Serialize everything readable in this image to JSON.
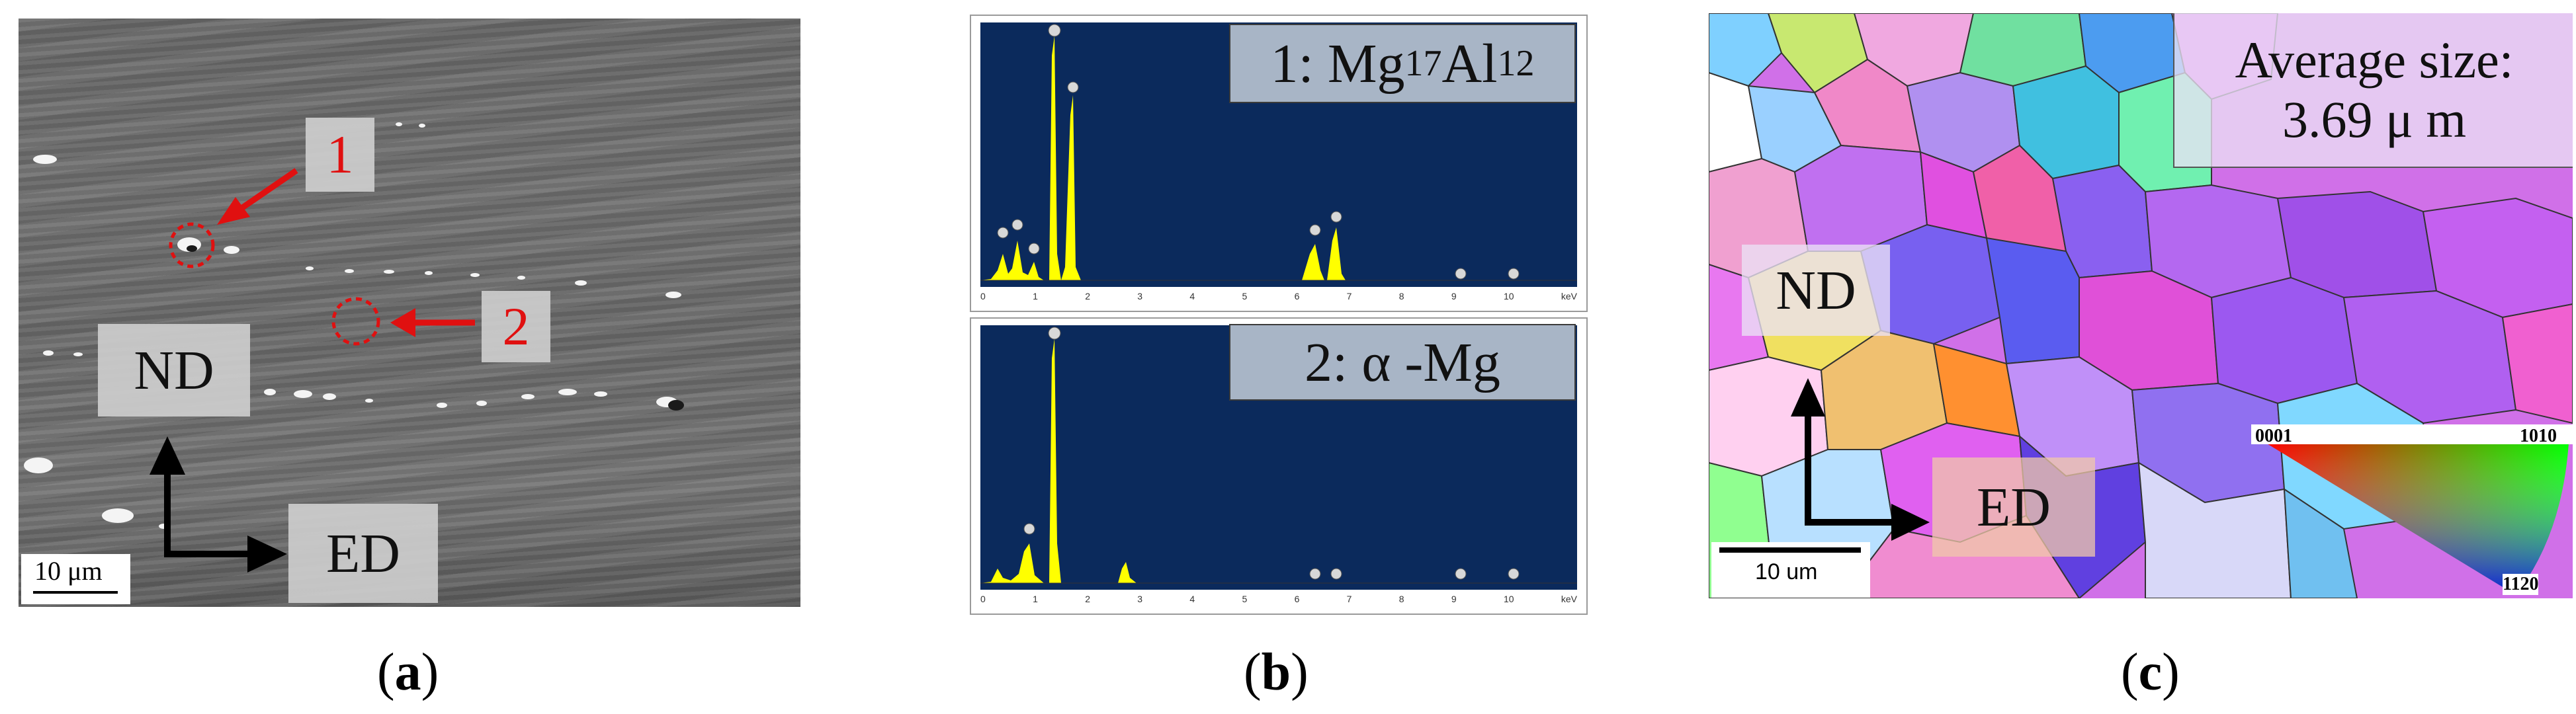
{
  "panel_a": {
    "marker_1": "1",
    "marker_2": "2",
    "nd_label": "ND",
    "ed_label": "ED",
    "scale_label": "10 μm",
    "caption": "a"
  },
  "panel_b": {
    "spectrum_1_label_prefix": "1: Mg",
    "spectrum_1_sub1": "17",
    "spectrum_1_mid": "Al",
    "spectrum_1_sub2": "12",
    "spectrum_2_label": "2:  α -Mg",
    "x_ticks": [
      "0",
      "1",
      "2",
      "3",
      "4",
      "5",
      "6",
      "7",
      "8",
      "9",
      "10"
    ],
    "x_unit": "keV",
    "caption": "b",
    "peak_color": "#ffff00",
    "background_color": "#0b2a5c"
  },
  "panel_c": {
    "avg_size_line1": "Average size:",
    "avg_size_line2": "3.69  μ m",
    "nd_label": "ND",
    "ed_label": "ED",
    "scale_label": "10 um",
    "ipf_0001": "0001",
    "ipf_1010": "1010",
    "ipf_1120": "1120",
    "caption": "c"
  }
}
